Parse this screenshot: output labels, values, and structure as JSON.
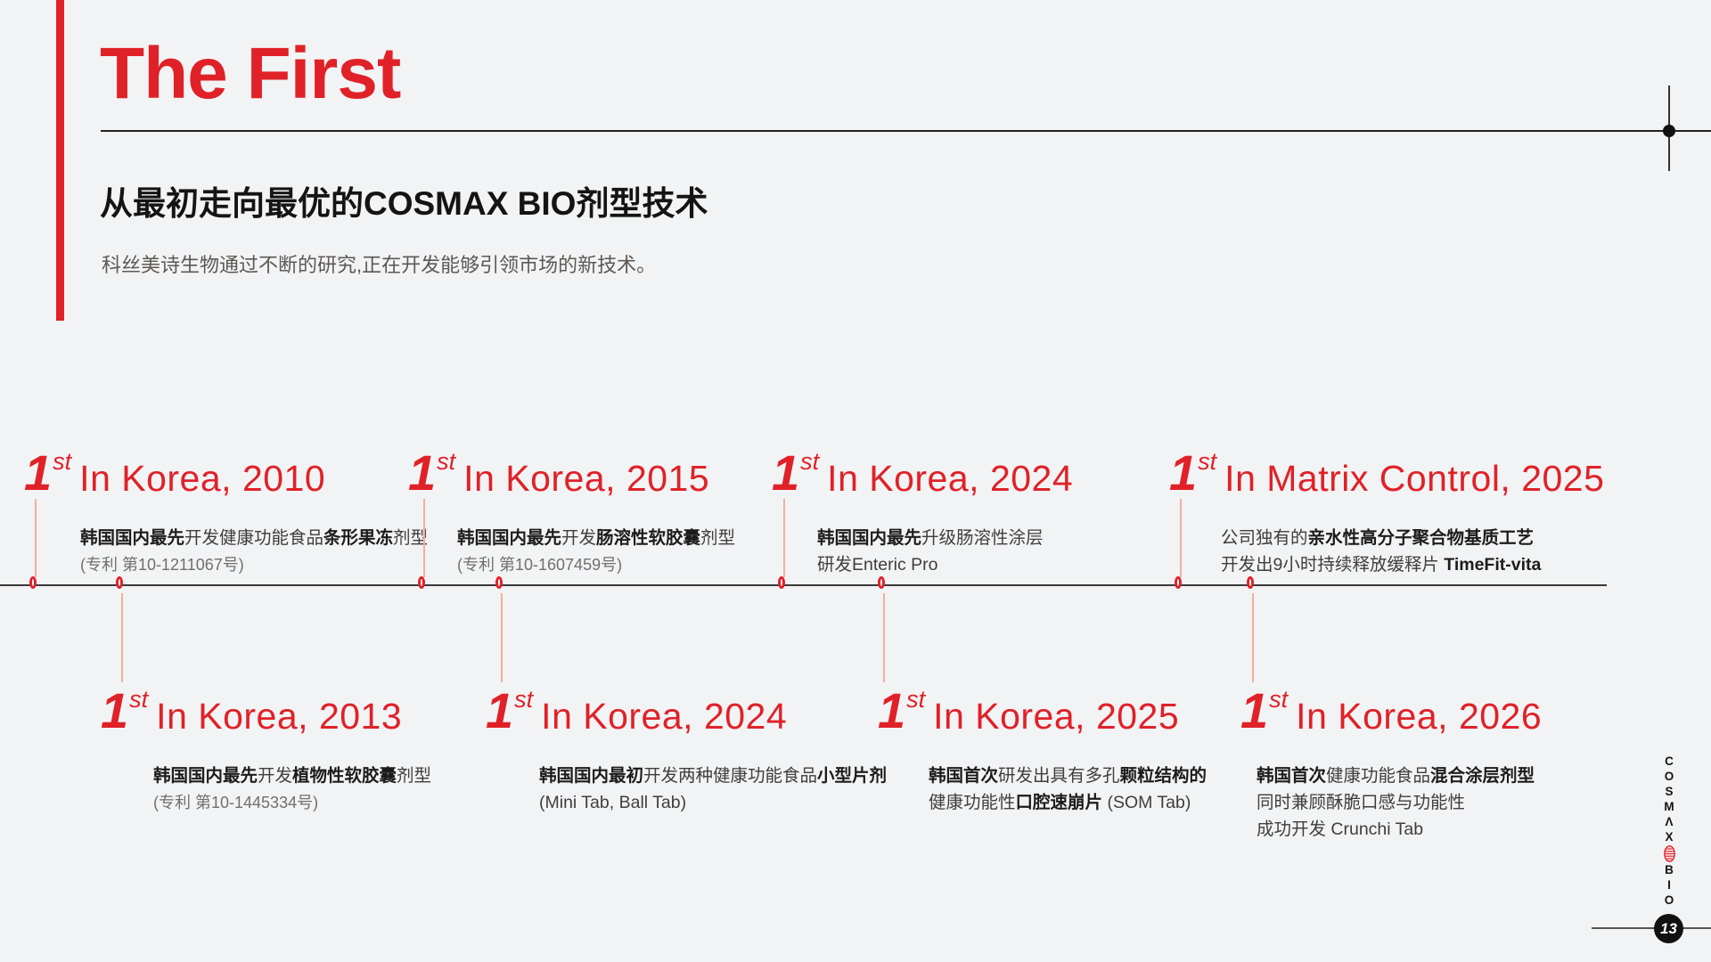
{
  "slide": {
    "title": "The First",
    "subtitle": "从最初走向最优的COSMAX BIO剂型技术",
    "description": "科丝美诗生物通过不断的研究,正在开发能够引领市场的新技术。",
    "page_number": "13"
  },
  "logo": {
    "brand": "COSMAX BIO",
    "letters_top": "COSMΛX",
    "letters_bottom": "BIO",
    "mark": "capsule-coil-icon"
  },
  "colors": {
    "accent": "#e02128",
    "connector": "#f1af9c",
    "timeline_line": "#3a3a3a",
    "background": "#f2f3f4"
  },
  "timeline": {
    "top_entries": [
      {
        "ordinal": "1",
        "suffix": "st",
        "headline": "In Korea, 2010",
        "lines": [
          {
            "muted": false,
            "segments": [
              {
                "t": "韩国国内最先",
                "b": true
              },
              {
                "t": "开发健康功能食品",
                "b": false
              },
              {
                "t": "条形果冻",
                "b": true
              },
              {
                "t": "剂型",
                "b": false
              }
            ]
          },
          {
            "muted": true,
            "segments": [
              {
                "t": "(专利 第10-1211067号)",
                "b": false
              }
            ]
          }
        ]
      },
      {
        "ordinal": "1",
        "suffix": "st",
        "headline": "In Korea, 2015",
        "lines": [
          {
            "muted": false,
            "segments": [
              {
                "t": "韩国国内最先",
                "b": true
              },
              {
                "t": "开发",
                "b": false
              },
              {
                "t": "肠溶性软胶囊",
                "b": true
              },
              {
                "t": "剂型",
                "b": false
              }
            ]
          },
          {
            "muted": true,
            "segments": [
              {
                "t": "(专利 第10-1607459号)",
                "b": false
              }
            ]
          }
        ]
      },
      {
        "ordinal": "1",
        "suffix": "st",
        "headline": "In Korea, 2024",
        "lines": [
          {
            "muted": false,
            "segments": [
              {
                "t": "韩国国内最先",
                "b": true
              },
              {
                "t": "升级肠溶性涂层",
                "b": false
              }
            ]
          },
          {
            "muted": false,
            "segments": [
              {
                "t": "研发Enteric Pro",
                "b": false
              }
            ]
          }
        ]
      },
      {
        "ordinal": "1",
        "suffix": "st",
        "headline": "In Matrix Control, 2025",
        "lines": [
          {
            "muted": false,
            "segments": [
              {
                "t": "公司独有的",
                "b": false
              },
              {
                "t": "亲水性高分子聚合物基质工艺",
                "b": true
              }
            ]
          },
          {
            "muted": false,
            "segments": [
              {
                "t": "开发出9小时持续释放缓释片 ",
                "b": false
              },
              {
                "t": "TimeFit-vita",
                "b": true
              }
            ]
          }
        ]
      }
    ],
    "bottom_entries": [
      {
        "ordinal": "1",
        "suffix": "st",
        "headline": "In Korea, 2013",
        "lines": [
          {
            "muted": false,
            "segments": [
              {
                "t": "韩国国内最先",
                "b": true
              },
              {
                "t": "开发",
                "b": false
              },
              {
                "t": "植物性软胶囊",
                "b": true
              },
              {
                "t": "剂型",
                "b": false
              }
            ]
          },
          {
            "muted": true,
            "segments": [
              {
                "t": "(专利 第10-1445334号)",
                "b": false
              }
            ]
          }
        ]
      },
      {
        "ordinal": "1",
        "suffix": "st",
        "headline": "In Korea, 2024",
        "lines": [
          {
            "muted": false,
            "segments": [
              {
                "t": "韩国国内最初",
                "b": true
              },
              {
                "t": "开发两种健康功能食品",
                "b": false
              },
              {
                "t": "小型片剂",
                "b": true
              }
            ]
          },
          {
            "muted": false,
            "segments": [
              {
                "t": "(Mini Tab, Ball Tab)",
                "b": false
              }
            ]
          }
        ]
      },
      {
        "ordinal": "1",
        "suffix": "st",
        "headline": "In Korea, 2025",
        "lines": [
          {
            "muted": false,
            "segments": [
              {
                "t": "韩国首次",
                "b": true
              },
              {
                "t": "研发出具有多孔",
                "b": false
              },
              {
                "t": "颗粒结构的",
                "b": true
              }
            ]
          },
          {
            "muted": false,
            "segments": [
              {
                "t": "健康功能性",
                "b": false
              },
              {
                "t": "口腔速崩片",
                "b": true
              },
              {
                "t": " (SOM Tab)",
                "b": false
              }
            ]
          }
        ]
      },
      {
        "ordinal": "1",
        "suffix": "st",
        "headline": "In Korea, 2026",
        "lines": [
          {
            "muted": false,
            "segments": [
              {
                "t": "韩国首次",
                "b": true
              },
              {
                "t": "健康功能食品",
                "b": false
              },
              {
                "t": "混合涂层剂型",
                "b": true
              }
            ]
          },
          {
            "muted": false,
            "segments": [
              {
                "t": "同时兼顾酥脆口感与功能性",
                "b": false
              }
            ]
          },
          {
            "muted": false,
            "segments": [
              {
                "t": "成功开发 Crunchi Tab",
                "b": false
              }
            ]
          }
        ]
      }
    ]
  }
}
